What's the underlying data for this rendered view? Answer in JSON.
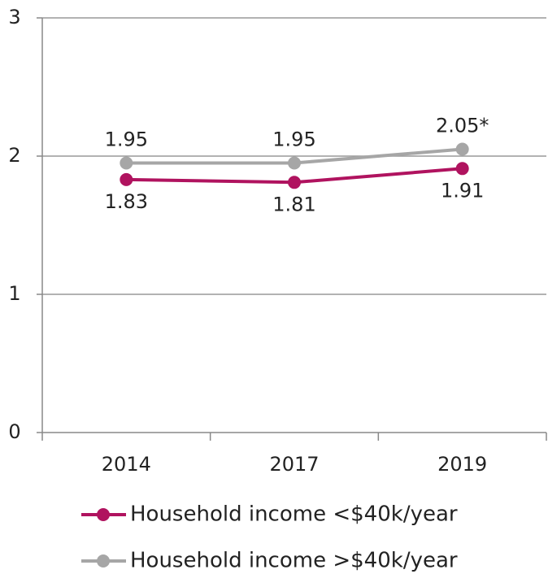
{
  "chart_data": {
    "type": "line",
    "categories": [
      "2014",
      "2017",
      "2019"
    ],
    "series": [
      {
        "name": "Household income <$40k/year",
        "color": "#b0135f",
        "values": [
          1.83,
          1.81,
          1.91
        ]
      },
      {
        "name": "Household income >$40k/year",
        "color": "#a6a6a6",
        "values": [
          1.95,
          1.95,
          2.05
        ],
        "value_labels": [
          "1.95",
          "1.95",
          "2.05*"
        ]
      }
    ],
    "ylim": [
      0,
      3
    ],
    "yticks": [
      0,
      1,
      2,
      3
    ],
    "grid": true
  }
}
